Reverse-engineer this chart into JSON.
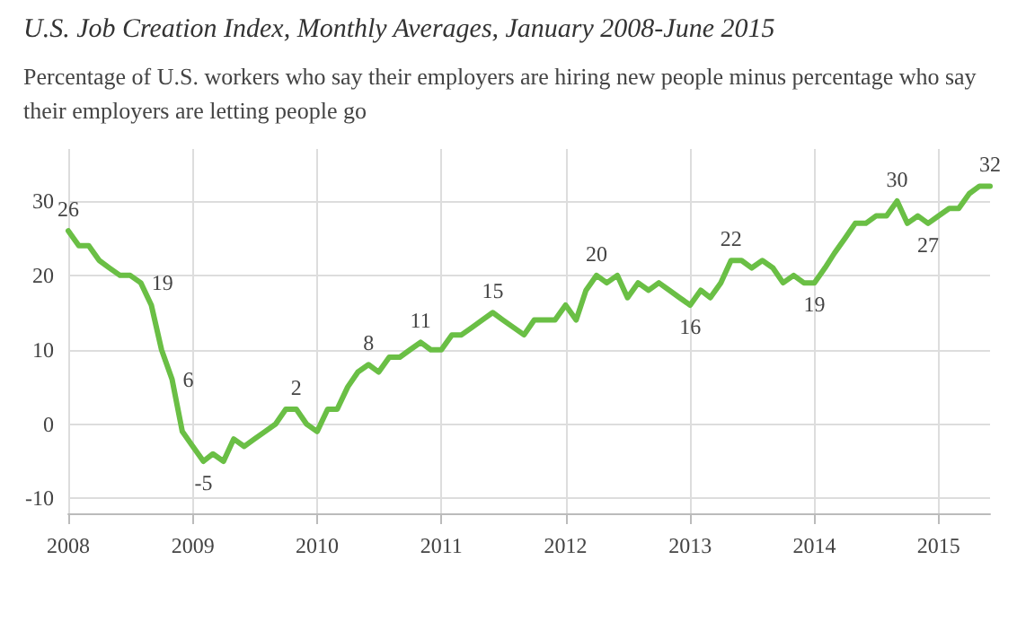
{
  "chart_data": {
    "type": "line",
    "title": "U.S. Job Creation Index, Monthly Averages, January 2008-June 2015",
    "subtitle": "Percentage of U.S. workers who say their employers are hiring new people minus percentage who say their employers are letting people go",
    "x": [
      "2008-01",
      "2008-02",
      "2008-03",
      "2008-04",
      "2008-05",
      "2008-06",
      "2008-07",
      "2008-08",
      "2008-09",
      "2008-10",
      "2008-11",
      "2008-12",
      "2009-01",
      "2009-02",
      "2009-03",
      "2009-04",
      "2009-05",
      "2009-06",
      "2009-07",
      "2009-08",
      "2009-09",
      "2009-10",
      "2009-11",
      "2009-12",
      "2010-01",
      "2010-02",
      "2010-03",
      "2010-04",
      "2010-05",
      "2010-06",
      "2010-07",
      "2010-08",
      "2010-09",
      "2010-10",
      "2010-11",
      "2010-12",
      "2011-01",
      "2011-02",
      "2011-03",
      "2011-04",
      "2011-05",
      "2011-06",
      "2011-07",
      "2011-08",
      "2011-09",
      "2011-10",
      "2011-11",
      "2011-12",
      "2012-01",
      "2012-02",
      "2012-03",
      "2012-04",
      "2012-05",
      "2012-06",
      "2012-07",
      "2012-08",
      "2012-09",
      "2012-10",
      "2012-11",
      "2012-12",
      "2013-01",
      "2013-02",
      "2013-03",
      "2013-04",
      "2013-05",
      "2013-06",
      "2013-07",
      "2013-08",
      "2013-09",
      "2013-10",
      "2013-11",
      "2013-12",
      "2014-01",
      "2014-02",
      "2014-03",
      "2014-04",
      "2014-05",
      "2014-06",
      "2014-07",
      "2014-08",
      "2014-09",
      "2014-10",
      "2014-11",
      "2014-12",
      "2015-01",
      "2015-02",
      "2015-03",
      "2015-04",
      "2015-05",
      "2015-06"
    ],
    "series": [
      {
        "color": "#6abf45",
        "values": [
          26,
          24,
          24,
          22,
          21,
          20,
          20,
          19,
          16,
          10,
          6,
          -1,
          -3,
          -5,
          -4,
          -5,
          -2,
          -3,
          -2,
          -1,
          0,
          2,
          2,
          0,
          -1,
          2,
          2,
          5,
          7,
          8,
          7,
          9,
          9,
          10,
          11,
          10,
          10,
          12,
          12,
          13,
          14,
          15,
          14,
          13,
          12,
          14,
          14,
          14,
          16,
          14,
          18,
          20,
          19,
          20,
          17,
          19,
          18,
          19,
          18,
          17,
          16,
          18,
          17,
          19,
          22,
          22,
          21,
          22,
          21,
          19,
          20,
          19,
          19,
          21,
          23,
          25,
          27,
          27,
          28,
          28,
          30,
          27,
          28,
          27,
          28,
          29,
          29,
          31,
          32,
          32
        ],
        "value_labels": [
          "26",
          null,
          null,
          null,
          null,
          null,
          null,
          "19",
          null,
          null,
          "6",
          null,
          null,
          "-5",
          null,
          null,
          null,
          null,
          null,
          null,
          null,
          null,
          "2",
          null,
          null,
          null,
          null,
          null,
          null,
          "8",
          null,
          null,
          null,
          null,
          "11",
          null,
          null,
          null,
          null,
          null,
          null,
          "15",
          null,
          null,
          null,
          null,
          null,
          null,
          null,
          null,
          null,
          "20",
          null,
          null,
          null,
          null,
          null,
          null,
          null,
          null,
          "16",
          null,
          null,
          null,
          "22",
          null,
          null,
          null,
          null,
          null,
          null,
          null,
          "19",
          null,
          null,
          null,
          null,
          null,
          null,
          null,
          "30",
          null,
          null,
          "27",
          null,
          null,
          null,
          null,
          null,
          "32"
        ]
      }
    ],
    "xlim": [
      "2008-01",
      "2015-06"
    ],
    "xticks": [
      "2008",
      "2009",
      "2010",
      "2011",
      "2012",
      "2013",
      "2014",
      "2015"
    ],
    "ylim": [
      -12,
      37
    ],
    "yticks": [
      -10,
      0,
      10,
      20,
      30
    ],
    "grid": true,
    "marker": "none",
    "line_style": "solid"
  }
}
